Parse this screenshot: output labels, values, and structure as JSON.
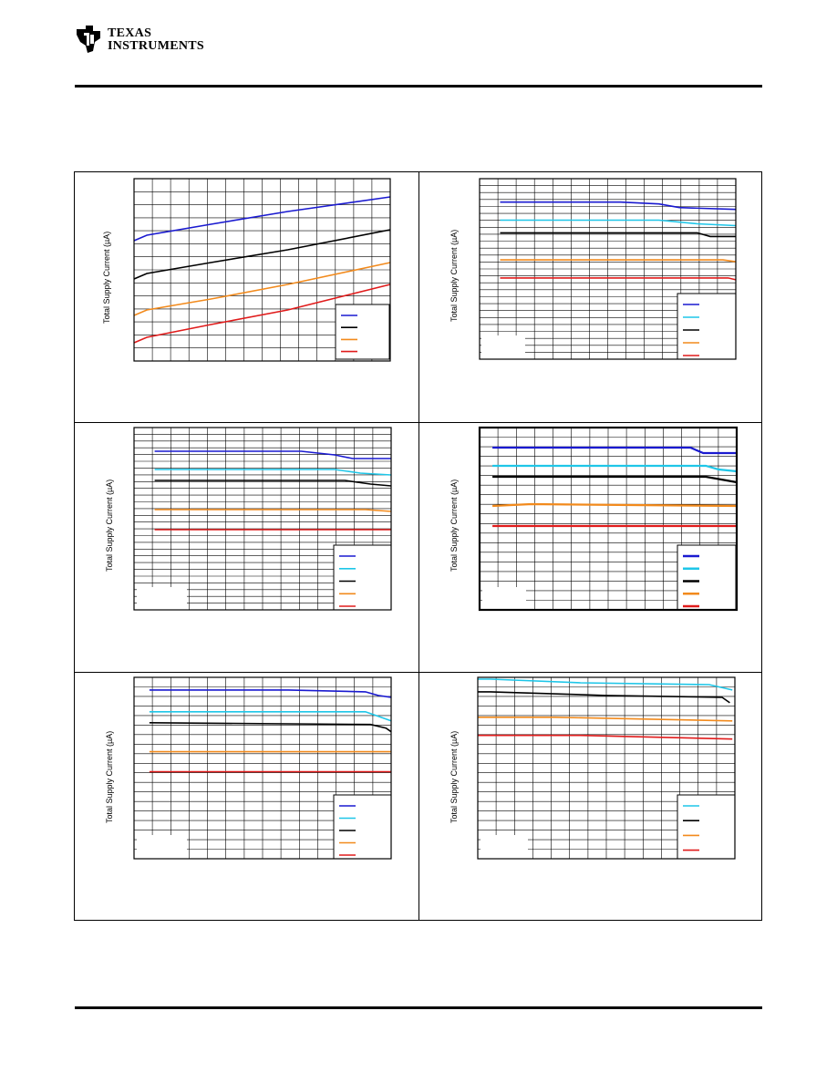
{
  "brand": {
    "company_line1": "TEXAS",
    "company_line2": "INSTRUMENTS",
    "logo_icon": "ti-state-logo-icon",
    "colors": {
      "rule": "#000000"
    }
  },
  "series_colors": {
    "blue": "#1a1ad0",
    "cyan": "#1ec6e8",
    "black": "#000000",
    "orange": "#f28a1c",
    "red": "#e01b1b"
  },
  "chart_data": [
    {
      "type": "line",
      "ylabel": "Total Supply Current (µA)",
      "grid": true,
      "legend": "bottom-right",
      "x": [
        0,
        1
      ],
      "ylim": [
        0,
        1
      ],
      "series": [
        {
          "color": "blue",
          "points": [
            [
              0,
              0.66
            ],
            [
              0.05,
              0.69
            ],
            [
              0.3,
              0.75
            ],
            [
              0.6,
              0.82
            ],
            [
              1,
              0.9
            ]
          ]
        },
        {
          "color": "black",
          "points": [
            [
              0,
              0.45
            ],
            [
              0.05,
              0.48
            ],
            [
              0.3,
              0.54
            ],
            [
              0.6,
              0.61
            ],
            [
              1,
              0.72
            ]
          ]
        },
        {
          "color": "orange",
          "points": [
            [
              0,
              0.25
            ],
            [
              0.05,
              0.28
            ],
            [
              0.3,
              0.34
            ],
            [
              0.6,
              0.42
            ],
            [
              1,
              0.54
            ]
          ]
        },
        {
          "color": "red",
          "points": [
            [
              0,
              0.1
            ],
            [
              0.05,
              0.13
            ],
            [
              0.3,
              0.2
            ],
            [
              0.6,
              0.28
            ],
            [
              1,
              0.42
            ]
          ]
        }
      ]
    },
    {
      "type": "line",
      "ylabel": "Total Supply Current (µA)",
      "grid": true,
      "legend": "bottom-right",
      "ylim": [
        0,
        1
      ],
      "series": [
        {
          "color": "blue",
          "points": [
            [
              0.08,
              0.87
            ],
            [
              0.55,
              0.87
            ],
            [
              0.7,
              0.86
            ],
            [
              0.78,
              0.84
            ],
            [
              1,
              0.83
            ]
          ]
        },
        {
          "color": "cyan",
          "points": [
            [
              0.08,
              0.77
            ],
            [
              0.7,
              0.77
            ],
            [
              0.85,
              0.75
            ],
            [
              1,
              0.74
            ]
          ]
        },
        {
          "color": "black",
          "points": [
            [
              0.08,
              0.7
            ],
            [
              0.85,
              0.7
            ],
            [
              0.9,
              0.68
            ],
            [
              1,
              0.68
            ]
          ]
        },
        {
          "color": "orange",
          "points": [
            [
              0.08,
              0.55
            ],
            [
              0.95,
              0.55
            ],
            [
              1,
              0.54
            ]
          ]
        },
        {
          "color": "red",
          "points": [
            [
              0.08,
              0.45
            ],
            [
              0.97,
              0.45
            ],
            [
              1,
              0.44
            ]
          ]
        }
      ]
    },
    {
      "type": "line",
      "ylabel": "Total Supply Current (µA)",
      "grid": true,
      "legend": "bottom-right",
      "ylim": [
        0,
        1
      ],
      "series": [
        {
          "color": "blue",
          "points": [
            [
              0.08,
              0.87
            ],
            [
              0.65,
              0.87
            ],
            [
              0.78,
              0.85
            ],
            [
              0.85,
              0.83
            ],
            [
              1,
              0.83
            ]
          ]
        },
        {
          "color": "cyan",
          "points": [
            [
              0.08,
              0.77
            ],
            [
              0.78,
              0.77
            ],
            [
              0.88,
              0.75
            ],
            [
              1,
              0.74
            ]
          ]
        },
        {
          "color": "black",
          "points": [
            [
              0.08,
              0.71
            ],
            [
              0.82,
              0.71
            ],
            [
              0.92,
              0.69
            ],
            [
              1,
              0.68
            ]
          ]
        },
        {
          "color": "orange",
          "points": [
            [
              0.08,
              0.55
            ],
            [
              0.9,
              0.55
            ],
            [
              1,
              0.54
            ]
          ]
        },
        {
          "color": "red",
          "points": [
            [
              0.08,
              0.44
            ],
            [
              1,
              0.44
            ]
          ]
        }
      ]
    },
    {
      "type": "line",
      "ylabel": "Total Supply Current (µA)",
      "grid": true,
      "legend": "bottom-right",
      "ylim": [
        0,
        1
      ],
      "series": [
        {
          "color": "blue",
          "points": [
            [
              0.05,
              0.89
            ],
            [
              0.82,
              0.89
            ],
            [
              0.87,
              0.86
            ],
            [
              1,
              0.86
            ]
          ]
        },
        {
          "color": "cyan",
          "points": [
            [
              0.05,
              0.79
            ],
            [
              0.88,
              0.79
            ],
            [
              0.93,
              0.77
            ],
            [
              1,
              0.76
            ]
          ]
        },
        {
          "color": "black",
          "points": [
            [
              0.05,
              0.73
            ],
            [
              0.88,
              0.73
            ],
            [
              1,
              0.7
            ]
          ]
        },
        {
          "color": "orange",
          "points": [
            [
              0.05,
              0.57
            ],
            [
              0.2,
              0.58
            ],
            [
              1,
              0.57
            ]
          ]
        },
        {
          "color": "red",
          "points": [
            [
              0.05,
              0.46
            ],
            [
              1,
              0.46
            ]
          ]
        }
      ]
    },
    {
      "type": "line",
      "ylabel": "Total Supply Current (µA)",
      "grid": true,
      "legend": "bottom-right",
      "ylim": [
        0,
        1
      ],
      "series": [
        {
          "color": "blue",
          "points": [
            [
              0.06,
              0.93
            ],
            [
              0.6,
              0.93
            ],
            [
              0.9,
              0.92
            ],
            [
              0.95,
              0.9
            ],
            [
              1,
              0.89
            ]
          ]
        },
        {
          "color": "cyan",
          "points": [
            [
              0.06,
              0.81
            ],
            [
              0.9,
              0.81
            ],
            [
              0.96,
              0.78
            ],
            [
              1,
              0.76
            ]
          ]
        },
        {
          "color": "black",
          "points": [
            [
              0.06,
              0.75
            ],
            [
              0.92,
              0.74
            ],
            [
              0.98,
              0.72
            ],
            [
              1,
              0.7
            ]
          ]
        },
        {
          "color": "orange",
          "points": [
            [
              0.06,
              0.59
            ],
            [
              1,
              0.59
            ]
          ]
        },
        {
          "color": "red",
          "points": [
            [
              0.06,
              0.48
            ],
            [
              1,
              0.48
            ]
          ]
        }
      ]
    },
    {
      "type": "line",
      "ylabel": "Total Supply Current (µA)",
      "grid": true,
      "legend": "bottom-right",
      "ylim": [
        0,
        1
      ],
      "series": [
        {
          "color": "cyan",
          "points": [
            [
              0,
              0.99
            ],
            [
              0.05,
              0.99
            ],
            [
              0.4,
              0.97
            ],
            [
              0.9,
              0.96
            ],
            [
              0.99,
              0.93
            ]
          ]
        },
        {
          "color": "black",
          "points": [
            [
              0,
              0.92
            ],
            [
              0.05,
              0.92
            ],
            [
              0.5,
              0.9
            ],
            [
              0.95,
              0.89
            ],
            [
              0.98,
              0.86
            ]
          ]
        },
        {
          "color": "orange",
          "points": [
            [
              0,
              0.78
            ],
            [
              0.3,
              0.78
            ],
            [
              0.99,
              0.76
            ]
          ]
        },
        {
          "color": "red",
          "points": [
            [
              0,
              0.68
            ],
            [
              0.4,
              0.68
            ],
            [
              0.99,
              0.66
            ]
          ]
        }
      ]
    }
  ]
}
